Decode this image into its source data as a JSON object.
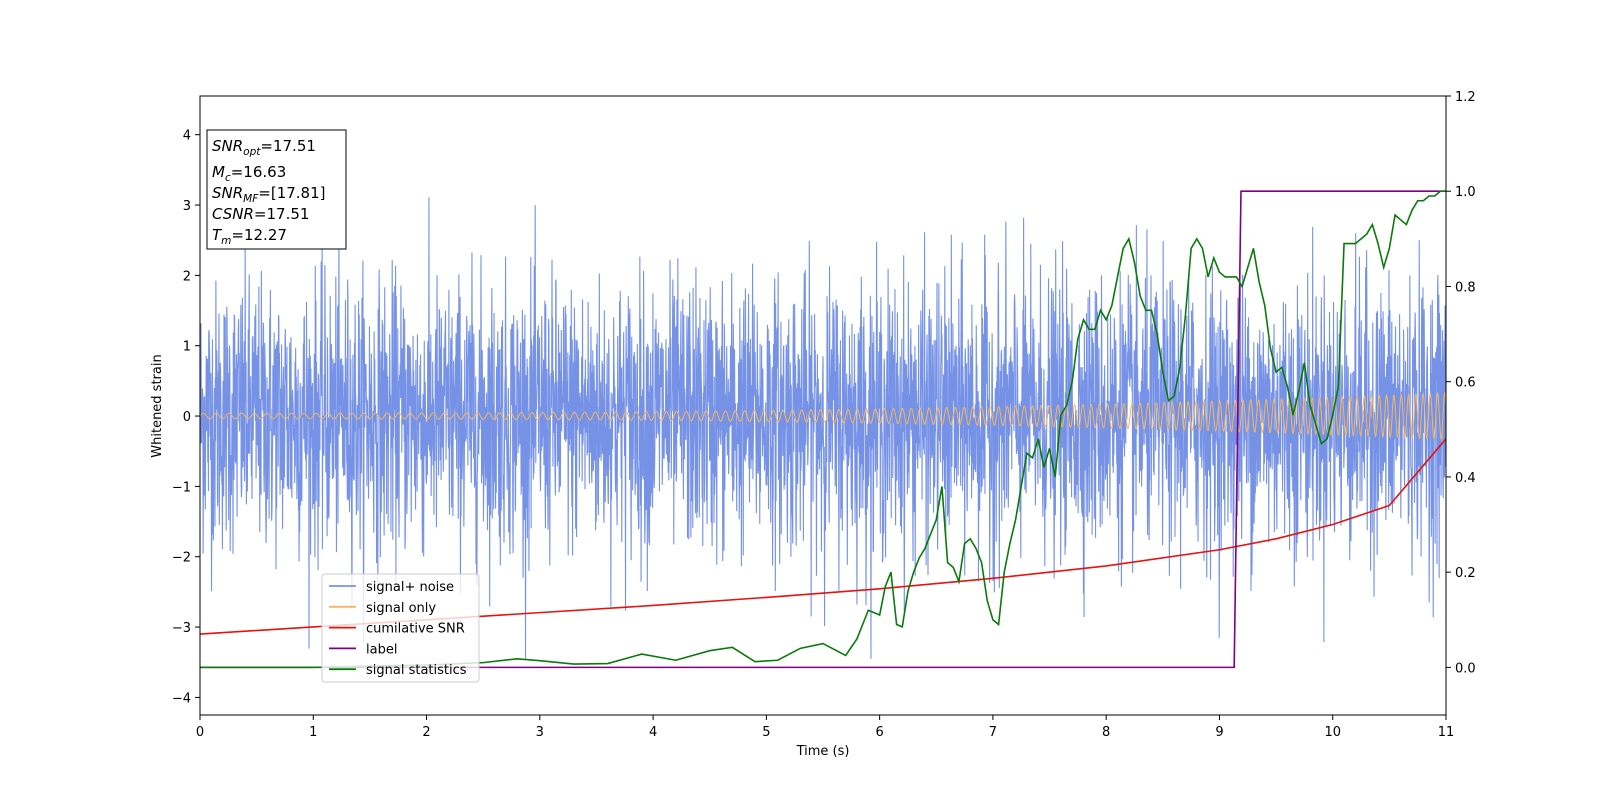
{
  "chart_data": {
    "type": "line",
    "xlabel": "Time (s)",
    "ylabel": "Whitened strain",
    "xlim": [
      0,
      11
    ],
    "ylim_left": [
      -4.25,
      4.55
    ],
    "ylim_right": [
      -0.1,
      1.2
    ],
    "x_ticks": [
      "0",
      "1",
      "2",
      "3",
      "4",
      "5",
      "6",
      "7",
      "8",
      "9",
      "10",
      "11"
    ],
    "y_ticks_left": [
      "−4",
      "−3",
      "−2",
      "−1",
      "0",
      "1",
      "2",
      "3",
      "4"
    ],
    "y_ticks_right": [
      "0.0",
      "0.2",
      "0.4",
      "0.6",
      "0.8",
      "1.0",
      "1.2"
    ],
    "grid": false,
    "legend_position": "lower-left",
    "legend": [
      {
        "label": "signal+ noise",
        "color": "#7592e6"
      },
      {
        "label": "signal only",
        "color": "#f5b560"
      },
      {
        "label": "cumilative SNR",
        "color": "#e8120e"
      },
      {
        "label": "label",
        "color": "#800080"
      },
      {
        "label": "signal statistics",
        "color": "#0a7a0a"
      }
    ],
    "info_box": [
      {
        "base": "SNR",
        "sub": "opt",
        "value": "=17.51"
      },
      {
        "base": "M",
        "sub": "c",
        "value": "=16.63"
      },
      {
        "base": "SNR",
        "sub": "MF",
        "value": "=[17.81]"
      },
      {
        "base": "CSNR",
        "sub": "",
        "value": "=17.51"
      },
      {
        "base": "T",
        "sub": "m",
        "value": "=12.27"
      }
    ],
    "series": [
      {
        "name": "signal+ noise",
        "axis": "left",
        "color": "#7592e6",
        "description": "whitened noisy strain, amplitude envelope approx ±3",
        "noise_std": 0.95,
        "t_range": [
          0,
          11
        ]
      },
      {
        "name": "signal only",
        "axis": "left",
        "color": "#f5b560",
        "chirp_amplitude_start": 0.04,
        "chirp_amplitude_end": 0.33,
        "t_range": [
          0,
          11
        ]
      },
      {
        "name": "cumilative SNR",
        "axis": "right",
        "color": "#e8120e",
        "x": [
          0,
          1,
          2,
          3,
          4,
          5,
          6,
          7,
          8,
          9,
          9.5,
          10,
          10.5,
          11
        ],
        "y": [
          0.07,
          0.085,
          0.1,
          0.115,
          0.13,
          0.147,
          0.165,
          0.187,
          0.213,
          0.247,
          0.27,
          0.3,
          0.34,
          0.48
        ]
      },
      {
        "name": "label",
        "axis": "right",
        "color": "#800080",
        "x": [
          0,
          9.13,
          9.19,
          11
        ],
        "y": [
          0,
          0,
          1,
          1
        ]
      },
      {
        "name": "signal statistics",
        "axis": "right",
        "color": "#0a7a0a",
        "x": [
          0,
          1.0,
          2.0,
          2.5,
          2.8,
          3.0,
          3.3,
          3.6,
          3.9,
          4.2,
          4.5,
          4.7,
          4.9,
          5.1,
          5.3,
          5.5,
          5.7,
          5.8,
          5.9,
          6.0,
          6.05,
          6.1,
          6.15,
          6.2,
          6.25,
          6.3,
          6.35,
          6.4,
          6.45,
          6.5,
          6.55,
          6.6,
          6.65,
          6.7,
          6.75,
          6.8,
          6.85,
          6.9,
          6.95,
          7.0,
          7.05,
          7.1,
          7.15,
          7.2,
          7.25,
          7.3,
          7.35,
          7.4,
          7.45,
          7.5,
          7.55,
          7.6,
          7.65,
          7.7,
          7.75,
          7.8,
          7.85,
          7.9,
          7.95,
          8.0,
          8.05,
          8.1,
          8.15,
          8.2,
          8.25,
          8.3,
          8.35,
          8.4,
          8.45,
          8.5,
          8.55,
          8.6,
          8.65,
          8.7,
          8.75,
          8.8,
          8.85,
          8.9,
          8.95,
          9.0,
          9.05,
          9.1,
          9.15,
          9.2,
          9.25,
          9.3,
          9.35,
          9.4,
          9.45,
          9.5,
          9.55,
          9.6,
          9.65,
          9.7,
          9.75,
          9.8,
          9.85,
          9.9,
          9.95,
          10.0,
          10.05,
          10.1,
          10.15,
          10.2,
          10.25,
          10.3,
          10.35,
          10.4,
          10.45,
          10.5,
          10.55,
          10.6,
          10.65,
          10.7,
          10.75,
          10.8,
          10.85,
          10.9,
          10.95,
          11.0
        ],
        "y": [
          0.0,
          0.0,
          0.005,
          0.01,
          0.018,
          0.014,
          0.007,
          0.008,
          0.028,
          0.015,
          0.035,
          0.042,
          0.012,
          0.015,
          0.04,
          0.05,
          0.025,
          0.06,
          0.12,
          0.11,
          0.17,
          0.2,
          0.09,
          0.085,
          0.16,
          0.2,
          0.23,
          0.25,
          0.28,
          0.31,
          0.38,
          0.22,
          0.21,
          0.18,
          0.26,
          0.27,
          0.25,
          0.22,
          0.14,
          0.1,
          0.09,
          0.2,
          0.26,
          0.31,
          0.38,
          0.45,
          0.44,
          0.48,
          0.42,
          0.46,
          0.4,
          0.53,
          0.55,
          0.6,
          0.69,
          0.73,
          0.71,
          0.71,
          0.75,
          0.73,
          0.76,
          0.82,
          0.88,
          0.9,
          0.85,
          0.78,
          0.75,
          0.75,
          0.7,
          0.62,
          0.56,
          0.57,
          0.63,
          0.74,
          0.88,
          0.9,
          0.88,
          0.82,
          0.86,
          0.83,
          0.82,
          0.82,
          0.82,
          0.8,
          0.84,
          0.88,
          0.81,
          0.76,
          0.67,
          0.62,
          0.63,
          0.59,
          0.53,
          0.58,
          0.64,
          0.55,
          0.51,
          0.47,
          0.48,
          0.53,
          0.59,
          0.89,
          0.89,
          0.89,
          0.9,
          0.91,
          0.93,
          0.89,
          0.84,
          0.88,
          0.95,
          0.94,
          0.93,
          0.96,
          0.98,
          0.98,
          0.99,
          0.99,
          1.0,
          1.0
        ]
      }
    ]
  }
}
